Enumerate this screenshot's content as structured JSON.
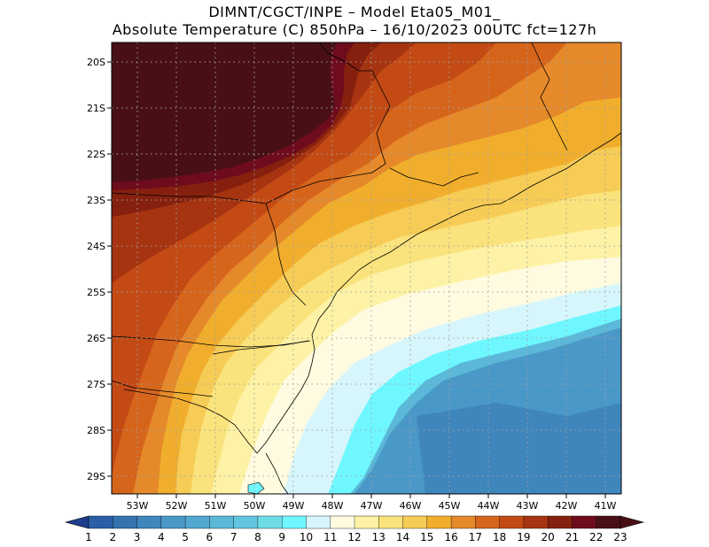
{
  "title": {
    "line1": "DIMNT/CGCT/INPE –  Model Eta05_M01_",
    "line2": "Absolute Temperature (C) 850hPa –  16/10/2023 00UTC fct=127h"
  },
  "map": {
    "lat_labels": [
      "20S",
      "21S",
      "22S",
      "23S",
      "24S",
      "25S",
      "26S",
      "27S",
      "28S",
      "29S"
    ],
    "lon_labels": [
      "53W",
      "52W",
      "51W",
      "50W",
      "49W",
      "48W",
      "47W",
      "46W",
      "45W",
      "44W",
      "43W",
      "42W",
      "41W"
    ]
  },
  "colorbar": {
    "labels": [
      "1",
      "2",
      "3",
      "4",
      "5",
      "6",
      "7",
      "8",
      "9",
      "10",
      "11",
      "12",
      "13",
      "14",
      "15",
      "16",
      "17",
      "18",
      "19",
      "20",
      "21",
      "22",
      "23"
    ],
    "colors": [
      "#1f3d8c",
      "#2a5fa5",
      "#3572b0",
      "#3f86bd",
      "#4a98c8",
      "#52a8d0",
      "#5bb8d8",
      "#62c6e0",
      "#6fdde8",
      "#6ff7ff",
      "#d7f6fb",
      "#fffbe0",
      "#fdf2a5",
      "#fae37c",
      "#f6cc56",
      "#f1ae2d",
      "#e5892a",
      "#d6651c",
      "#c34a14",
      "#a63410",
      "#86200e",
      "#6e0c1e",
      "#481015"
    ]
  }
}
